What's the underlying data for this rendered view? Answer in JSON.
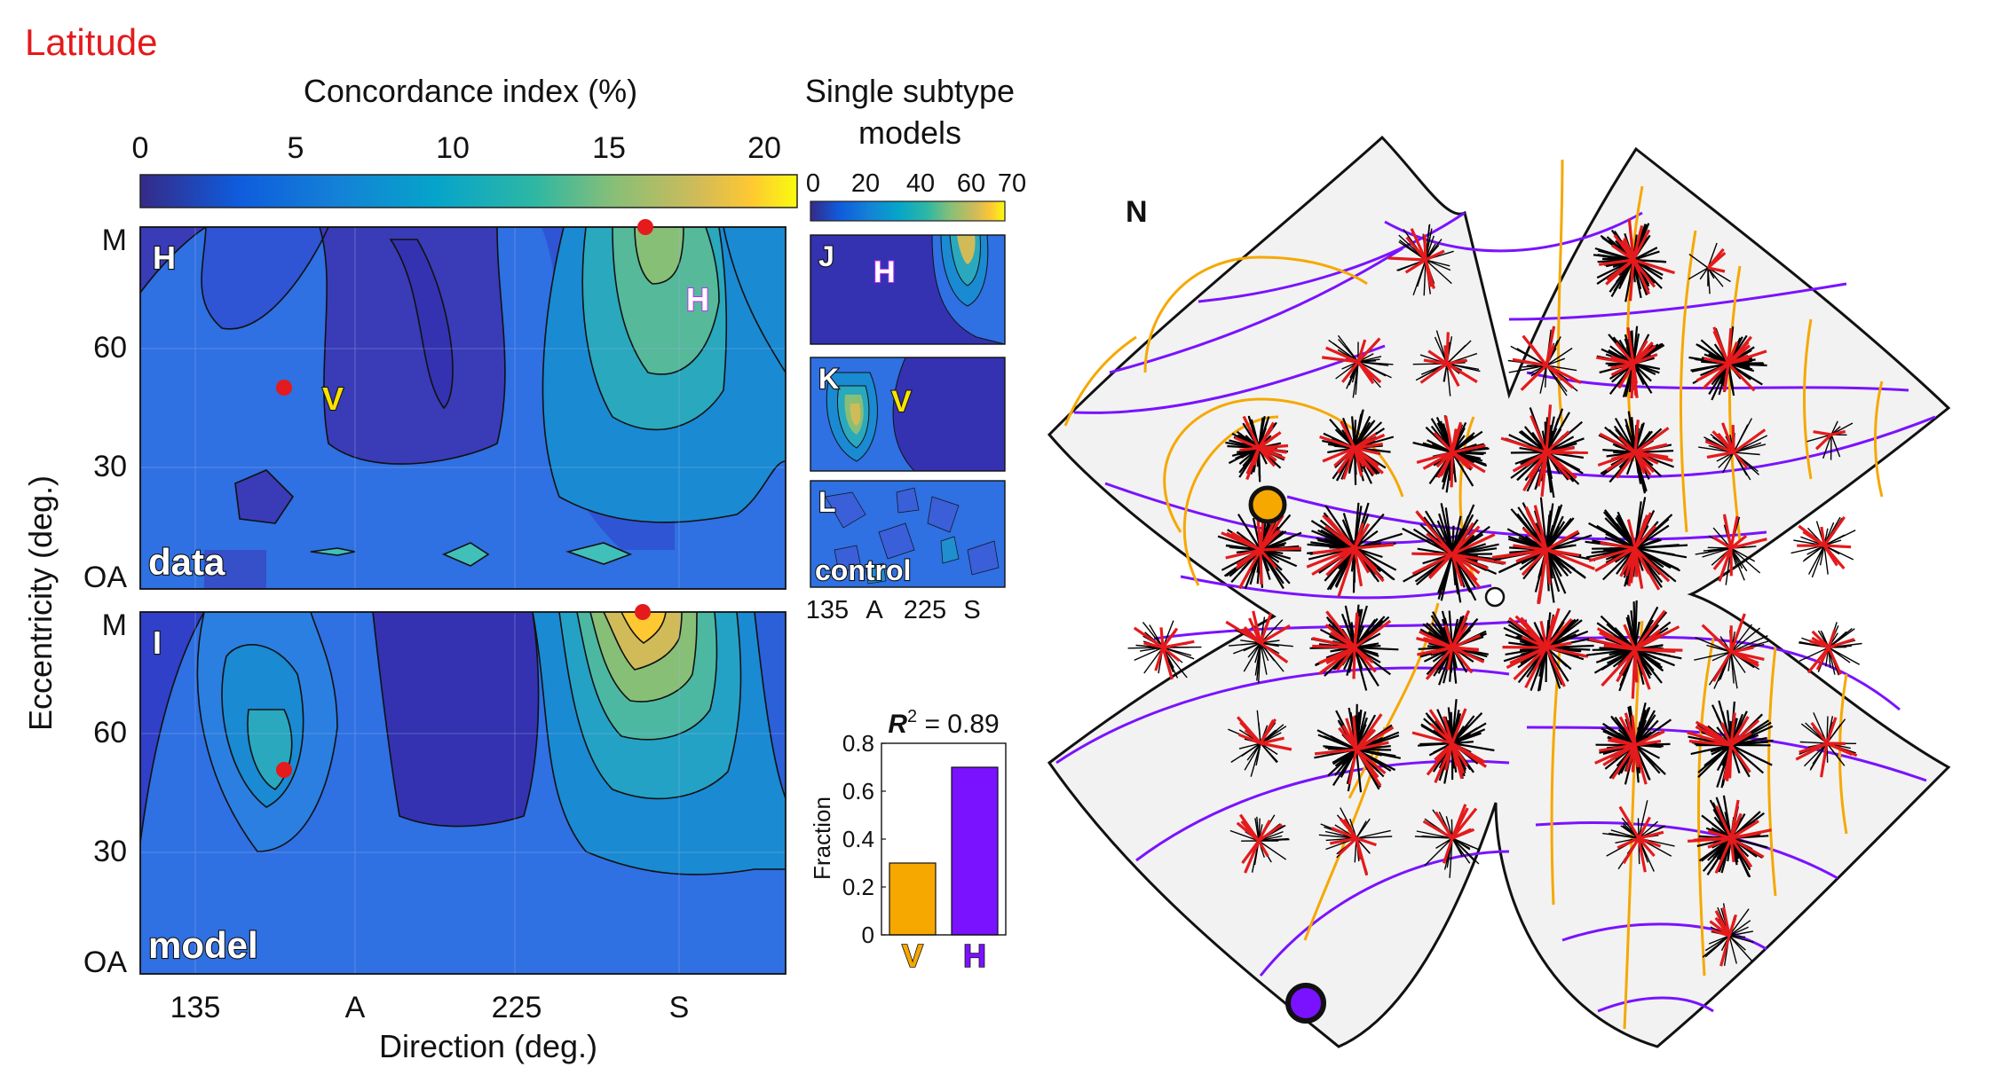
{
  "figure": {
    "title": "Latitude",
    "colorbar_main": {
      "label": "Concordance index (%)",
      "ticks": [
        "0",
        "5",
        "10",
        "15",
        "20"
      ],
      "range": [
        0,
        21
      ]
    },
    "colorbar_small": {
      "label_line1": "Single subtype",
      "label_line2": "models",
      "ticks": [
        "0",
        "20",
        "40",
        "60",
        "70"
      ],
      "range": [
        0,
        70
      ]
    },
    "ylabel": "Eccentricity (deg.)",
    "xlabel": "Direction (deg.)",
    "yticks": [
      "M",
      "60",
      "30",
      "OA"
    ],
    "xticks": [
      "135",
      "A",
      "225",
      "S"
    ],
    "small_xticks": [
      "135",
      "A",
      "225",
      "S"
    ],
    "panels": {
      "H": {
        "letter": "H",
        "caption": "data",
        "markers": {
          "h_label": "H",
          "v_label": "V"
        }
      },
      "I": {
        "letter": "I",
        "caption": "model"
      },
      "J": {
        "letter": "J",
        "marker": "H"
      },
      "K": {
        "letter": "K",
        "marker": "V"
      },
      "L": {
        "letter": "L",
        "caption": "control"
      }
    },
    "colors": {
      "red": "#e41a1c",
      "orange": "#f6a800",
      "purple": "#7a12ff",
      "black": "#000000"
    }
  },
  "chart_data": [
    {
      "type": "bar",
      "title": "R² = 0.89",
      "title_prefix": "R",
      "title_sup": "2",
      "title_suffix": " = 0.89",
      "categories": [
        "V",
        "H"
      ],
      "values": [
        0.3,
        0.7
      ],
      "bar_colors": [
        "#f6a800",
        "#7a12ff"
      ],
      "ylabel": "Fraction",
      "ylim": [
        0,
        0.8
      ],
      "yticks": [
        "0",
        "0.2",
        "0.4",
        "0.6",
        "0.8"
      ]
    },
    {
      "type": "heatmap",
      "x_ticks": [
        "135",
        "A",
        "225",
        "S"
      ],
      "y_ticks": [
        "M",
        "60",
        "30",
        "OA"
      ],
      "panel": "H",
      "caption": "data",
      "value_range": [
        0,
        21
      ]
    },
    {
      "type": "heatmap",
      "x_ticks": [
        "135",
        "A",
        "225",
        "S"
      ],
      "y_ticks": [
        "M",
        "60",
        "30",
        "OA"
      ],
      "panel": "I",
      "caption": "model",
      "value_range": [
        0,
        21
      ]
    }
  ],
  "retina_map": {
    "label": "N",
    "legend_dots": [
      "orange-dot",
      "purple-dot",
      "white-dot"
    ]
  }
}
